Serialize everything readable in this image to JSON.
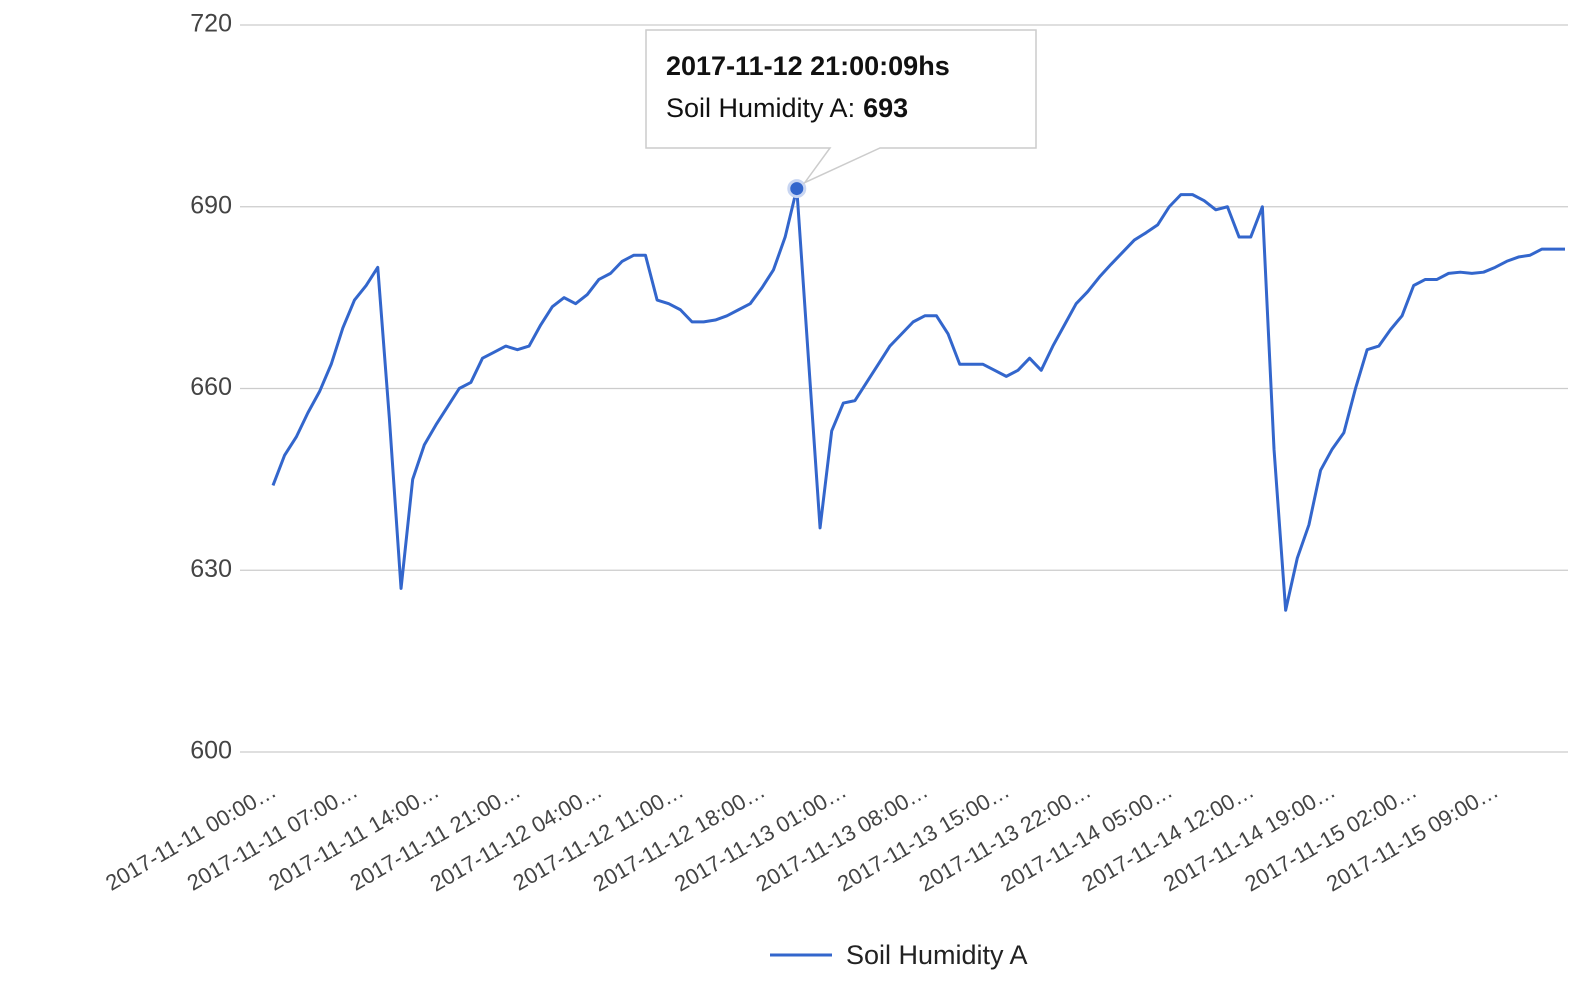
{
  "chart_data": {
    "type": "line",
    "categories": [
      "2017-11-11 00:00…",
      null,
      null,
      null,
      null,
      null,
      null,
      "2017-11-11 07:00…",
      null,
      null,
      null,
      null,
      null,
      null,
      "2017-11-11 14:00…",
      null,
      null,
      null,
      null,
      null,
      null,
      "2017-11-11 21:00…",
      null,
      null,
      null,
      null,
      null,
      null,
      "2017-11-12 04:00…",
      null,
      null,
      null,
      null,
      null,
      null,
      "2017-11-12 11:00…",
      null,
      null,
      null,
      null,
      null,
      null,
      "2017-11-12 18:00…",
      null,
      null,
      null,
      null,
      null,
      null,
      "2017-11-13 01:00…",
      null,
      null,
      null,
      null,
      null,
      null,
      "2017-11-13 08:00…",
      null,
      null,
      null,
      null,
      null,
      null,
      "2017-11-13 15:00…",
      null,
      null,
      null,
      null,
      null,
      null,
      "2017-11-13 22:00…",
      null,
      null,
      null,
      null,
      null,
      null,
      "2017-11-14 05:00…",
      null,
      null,
      null,
      null,
      null,
      null,
      "2017-11-14 12:00…",
      null,
      null,
      null,
      null,
      null,
      null,
      "2017-11-14 19:00…",
      null,
      null,
      null,
      null,
      null,
      null,
      "2017-11-15 02:00…",
      null,
      null,
      null,
      null,
      null,
      null,
      "2017-11-15 09:00…",
      null,
      null,
      null,
      null,
      null,
      null
    ],
    "series": [
      {
        "name": "Soil Humidity A",
        "color": "#3366cc",
        "values": [
          644,
          649,
          652,
          656,
          659.5,
          664,
          670,
          674.6,
          677,
          680,
          655,
          627,
          645,
          650.7,
          654,
          657,
          660,
          661,
          665,
          666,
          667,
          666.4,
          667,
          670.5,
          673.5,
          675,
          674,
          675.5,
          678,
          679,
          681,
          682,
          682,
          674.6,
          674,
          673,
          671,
          671,
          671.3,
          672,
          673,
          674,
          676.6,
          679.6,
          685,
          693,
          665,
          637,
          653,
          657.6,
          658,
          661,
          664,
          667,
          669,
          671,
          672,
          672,
          669,
          664,
          664,
          664,
          663,
          662,
          663,
          665,
          663,
          667,
          670.5,
          674,
          676,
          678.4,
          680.5,
          682.5,
          684.5,
          685.7,
          687,
          690,
          692,
          692,
          691,
          689.5,
          690,
          685,
          685,
          690,
          650,
          623.4,
          632,
          637.5,
          646.5,
          650,
          652.7,
          660,
          666.4,
          667,
          669.7,
          672,
          677,
          678,
          678,
          679,
          679.2,
          679,
          679.2,
          680,
          681,
          681.7,
          682,
          683,
          683,
          683
        ]
      }
    ],
    "ylim": [
      600,
      720
    ],
    "yticks": [
      600,
      630,
      660,
      690,
      720
    ],
    "grid": true,
    "legend": "bottom",
    "tooltip": {
      "title": "2017-11-12 21:00:09hs",
      "label": "Soil Humidity A:"
    }
  }
}
